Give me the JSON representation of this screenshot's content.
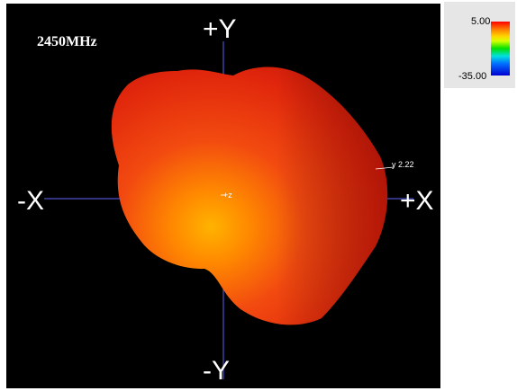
{
  "plot": {
    "frequency": "2450MHz",
    "axes": {
      "plus_y": "+Y",
      "minus_y": "-Y",
      "minus_x": "-X",
      "plus_x": "+X",
      "plus_z": "+z"
    },
    "peak_marker": "y 2.22",
    "colors": {
      "background": "#000000",
      "axis_line": "#4d52c9",
      "pattern_main": "#e8240f",
      "pattern_hot": "#ffb000"
    }
  },
  "legend": {
    "max_label": "5.00",
    "min_label": "-35.00",
    "colormap": [
      "#ff0000",
      "#ff7a00",
      "#ffd400",
      "#00e000",
      "#00e0e0",
      "#0070ff",
      "#0000d0"
    ]
  }
}
